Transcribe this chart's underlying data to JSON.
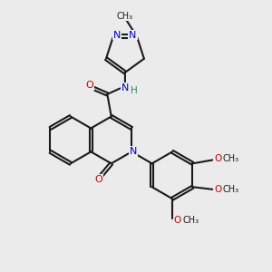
{
  "bg_color": "#ebebeb",
  "bond_color": "#1a1a1a",
  "N_color": "#0000cc",
  "O_color": "#cc0000",
  "H_color": "#2e8b57",
  "line_width": 1.5,
  "dbo": 0.055,
  "xlim": [
    0,
    10
  ],
  "ylim": [
    0,
    10
  ]
}
